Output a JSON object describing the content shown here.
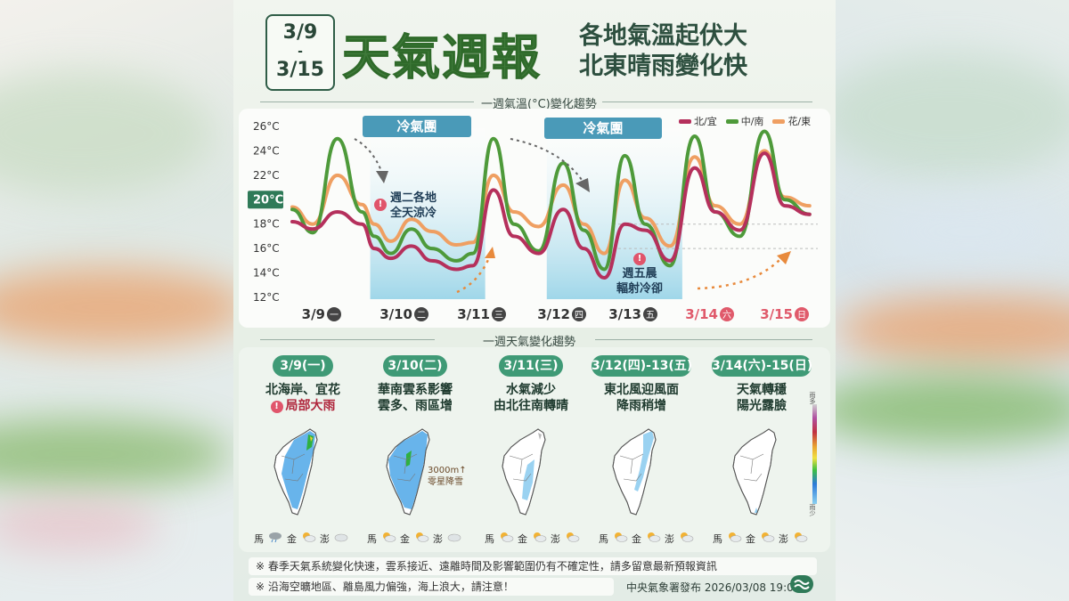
{
  "header": {
    "date_start": "3/9",
    "date_dash": "-",
    "date_end": "3/15",
    "title": "天氣週報",
    "subtitle_line1": "各地氣溫起伏大",
    "subtitle_line2": "北東晴雨變化快"
  },
  "temp_section": {
    "label": "一週氣溫(°C)變化趨勢",
    "legend": [
      {
        "name": "北/宜",
        "color": "#b5305c"
      },
      {
        "name": "中/南",
        "color": "#4e9a3a"
      },
      {
        "name": "花/東",
        "color": "#ef9f62"
      }
    ],
    "cold_tags": [
      "冷氣團",
      "冷氣團"
    ],
    "highlight_label": "20°C",
    "annotation_tue_line1": "週二各地",
    "annotation_tue_line2": "全天涼冷",
    "annotation_fri_line1": "週五晨",
    "annotation_fri_line2": "輻射冷卻",
    "alert_glyph": "!"
  },
  "chart_data": {
    "type": "line",
    "yticks": [
      "26°C",
      "24°C",
      "22°C",
      "20°C",
      "18°C",
      "16°C",
      "14°C",
      "12°C"
    ],
    "ylim": [
      12,
      26
    ],
    "x_labels": [
      {
        "date": "3/9",
        "day": "一",
        "weekend": false
      },
      {
        "date": "3/10",
        "day": "二",
        "weekend": false
      },
      {
        "date": "3/11",
        "day": "三",
        "weekend": false
      },
      {
        "date": "3/12",
        "day": "四",
        "weekend": false
      },
      {
        "date": "3/13",
        "day": "五",
        "weekend": false
      },
      {
        "date": "3/14",
        "day": "六",
        "weekend": true
      },
      {
        "date": "3/15",
        "day": "日",
        "weekend": true
      }
    ],
    "x_start_day": 0,
    "series": [
      {
        "name": "北/宜",
        "color": "#b5305c",
        "points": [
          [
            0,
            18.2
          ],
          [
            0.25,
            17.6
          ],
          [
            0.55,
            19.0
          ],
          [
            0.85,
            18.0
          ],
          [
            1.0,
            16.0
          ],
          [
            1.2,
            15.2
          ],
          [
            1.45,
            16.2
          ],
          [
            1.7,
            15.0
          ],
          [
            2.0,
            14.3
          ],
          [
            2.2,
            14.6
          ],
          [
            2.45,
            20.8
          ],
          [
            2.7,
            17.0
          ],
          [
            3.0,
            15.6
          ],
          [
            3.3,
            19.2
          ],
          [
            3.55,
            16.0
          ],
          [
            3.8,
            13.6
          ],
          [
            4.05,
            18.0
          ],
          [
            4.3,
            17.5
          ],
          [
            4.6,
            15.0
          ],
          [
            4.9,
            22.6
          ],
          [
            5.15,
            19.0
          ],
          [
            5.45,
            17.5
          ],
          [
            5.75,
            23.8
          ],
          [
            6.0,
            19.5
          ],
          [
            6.3,
            18.8
          ]
        ]
      },
      {
        "name": "中/南",
        "color": "#4e9a3a",
        "points": [
          [
            0,
            19.2
          ],
          [
            0.25,
            17.3
          ],
          [
            0.55,
            25.0
          ],
          [
            0.85,
            19.0
          ],
          [
            1.0,
            17.0
          ],
          [
            1.2,
            15.6
          ],
          [
            1.45,
            17.6
          ],
          [
            1.7,
            16.0
          ],
          [
            2.0,
            15.0
          ],
          [
            2.2,
            15.6
          ],
          [
            2.45,
            25.0
          ],
          [
            2.7,
            18.0
          ],
          [
            3.0,
            15.8
          ],
          [
            3.3,
            23.0
          ],
          [
            3.55,
            17.5
          ],
          [
            3.8,
            14.3
          ],
          [
            4.05,
            23.6
          ],
          [
            4.3,
            18.0
          ],
          [
            4.6,
            14.6
          ],
          [
            4.9,
            25.2
          ],
          [
            5.15,
            19.0
          ],
          [
            5.45,
            17.0
          ],
          [
            5.75,
            25.6
          ],
          [
            6.0,
            20.0
          ],
          [
            6.3,
            18.8
          ]
        ]
      },
      {
        "name": "花/東",
        "color": "#ef9f62",
        "points": [
          [
            0,
            19.4
          ],
          [
            0.25,
            18.0
          ],
          [
            0.55,
            22.0
          ],
          [
            0.85,
            19.6
          ],
          [
            1.0,
            18.0
          ],
          [
            1.2,
            16.6
          ],
          [
            1.45,
            18.4
          ],
          [
            1.7,
            17.4
          ],
          [
            2.0,
            16.3
          ],
          [
            2.2,
            16.5
          ],
          [
            2.45,
            22.0
          ],
          [
            2.7,
            19.0
          ],
          [
            3.0,
            17.8
          ],
          [
            3.3,
            21.2
          ],
          [
            3.55,
            18.0
          ],
          [
            3.8,
            15.6
          ],
          [
            4.05,
            21.6
          ],
          [
            4.3,
            18.5
          ],
          [
            4.6,
            16.2
          ],
          [
            4.9,
            23.5
          ],
          [
            5.15,
            19.5
          ],
          [
            5.45,
            18.0
          ],
          [
            5.75,
            24.0
          ],
          [
            6.0,
            20.2
          ],
          [
            6.3,
            19.5
          ]
        ]
      }
    ],
    "cold_periods": [
      [
        0.95,
        2.35
      ],
      [
        3.1,
        4.75
      ]
    ]
  },
  "weather_section": {
    "label": "一週天氣變化趨勢",
    "days": [
      {
        "tag": "3/9(一)",
        "line1": "北海岸、宜花",
        "line2": "局部大雨",
        "alert": true,
        "rain": "north-east-heavy",
        "islands": [
          {
            "name": "馬",
            "icon": "rain"
          },
          {
            "name": "金",
            "icon": "sun-cloud"
          },
          {
            "name": "澎",
            "icon": "cloud"
          }
        ]
      },
      {
        "tag": "3/10(二)",
        "line1": "華南雲系影響",
        "line2": "雲多、雨區增",
        "alert": false,
        "rain": "widespread",
        "islands": [
          {
            "name": "馬",
            "icon": "sun-cloud"
          },
          {
            "name": "金",
            "icon": "sun-cloud"
          },
          {
            "name": "澎",
            "icon": "cloud"
          }
        ]
      },
      {
        "tag": "3/11(三)",
        "line1": "水氣減少",
        "line2": "由北往南轉晴",
        "alert": false,
        "rain": "south-light",
        "islands": [
          {
            "name": "馬",
            "icon": "sun-cloud"
          },
          {
            "name": "金",
            "icon": "sun-cloud"
          },
          {
            "name": "澎",
            "icon": "sun-cloud"
          }
        ]
      },
      {
        "tag": "3/12(四)-13(五)",
        "line1": "東北風迎風面",
        "line2": "降雨稍增",
        "alert": false,
        "rain": "east-light",
        "islands": [
          {
            "name": "馬",
            "icon": "sun-cloud"
          },
          {
            "name": "金",
            "icon": "sun-cloud"
          },
          {
            "name": "澎",
            "icon": "sun-cloud"
          }
        ]
      },
      {
        "tag": "3/14(六)-15(日)",
        "line1": "天氣轉穩",
        "line2": "陽光露臉",
        "alert": false,
        "rain": "none",
        "islands": [
          {
            "name": "馬",
            "icon": "sun-cloud"
          },
          {
            "name": "金",
            "icon": "sun-cloud"
          },
          {
            "name": "澎",
            "icon": "sun-cloud"
          }
        ]
      }
    ],
    "mountain_note_line1": "3000m↑",
    "mountain_note_line2": "零星降雪",
    "scale_top": "雨多",
    "scale_bottom": "雨少"
  },
  "notes": [
    "※ 春季天氣系統變化快速，雲系接近、遠離時間及影響範圍仍有不確定性，請多留意最新預報資訊",
    "※ 沿海空曠地區、離島風力偏強，海上浪大，請注意！"
  ],
  "footer": "中央氣象署發布 2026/03/08 19:00"
}
